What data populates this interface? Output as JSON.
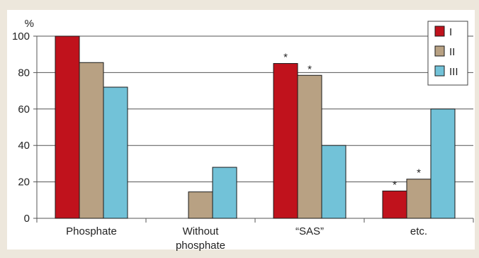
{
  "chart_data": {
    "type": "bar",
    "ylabel": "%",
    "ylim": [
      0,
      100
    ],
    "yticks": [
      0,
      20,
      40,
      60,
      80,
      100
    ],
    "categories": [
      [
        "Phosphate"
      ],
      [
        "Without",
        "phosphate"
      ],
      [
        "“SAS”"
      ],
      [
        "etc."
      ]
    ],
    "series": [
      {
        "name": "I",
        "color": "#c0121c",
        "values": [
          100,
          null,
          85,
          15
        ]
      },
      {
        "name": "II",
        "color": "#b8a183",
        "values": [
          85.5,
          14.5,
          78.5,
          21.5
        ]
      },
      {
        "name": "III",
        "color": "#72c2d8",
        "values": [
          72,
          28,
          40,
          60
        ]
      }
    ],
    "annotations": [
      {
        "series": 0,
        "category": 2,
        "text": "*"
      },
      {
        "series": 1,
        "category": 2,
        "text": "*"
      },
      {
        "series": 0,
        "category": 3,
        "text": "*"
      },
      {
        "series": 1,
        "category": 3,
        "text": "*"
      }
    ],
    "legend_position": "top-right",
    "grid": "horizontal"
  }
}
